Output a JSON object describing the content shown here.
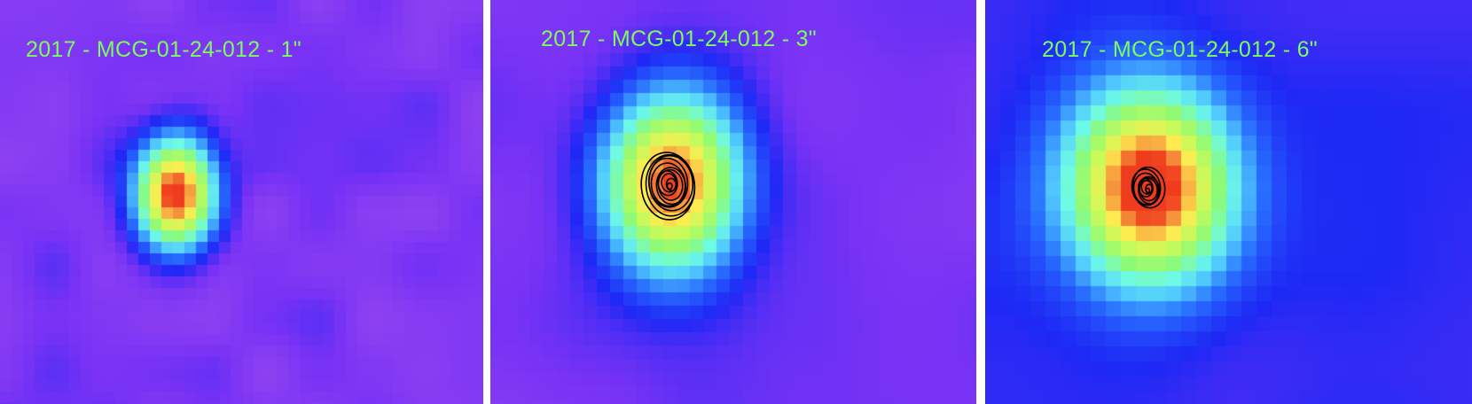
{
  "panels": [
    {
      "label": "2017 - MCG-01-24-012 - 1\"",
      "colormap": "false-color",
      "contours": false
    },
    {
      "label": "2017 - MCG-01-24-012 - 3\"",
      "colormap": "false-color",
      "contours": true
    },
    {
      "label": "2017 - MCG-01-24-012 - 6\"",
      "colormap": "false-color",
      "contours": true
    }
  ],
  "colors": {
    "label_text": "#7CFB5C",
    "contour_line": "#000000",
    "background_low": "#7A35F5",
    "peak": "#F03A1C"
  }
}
